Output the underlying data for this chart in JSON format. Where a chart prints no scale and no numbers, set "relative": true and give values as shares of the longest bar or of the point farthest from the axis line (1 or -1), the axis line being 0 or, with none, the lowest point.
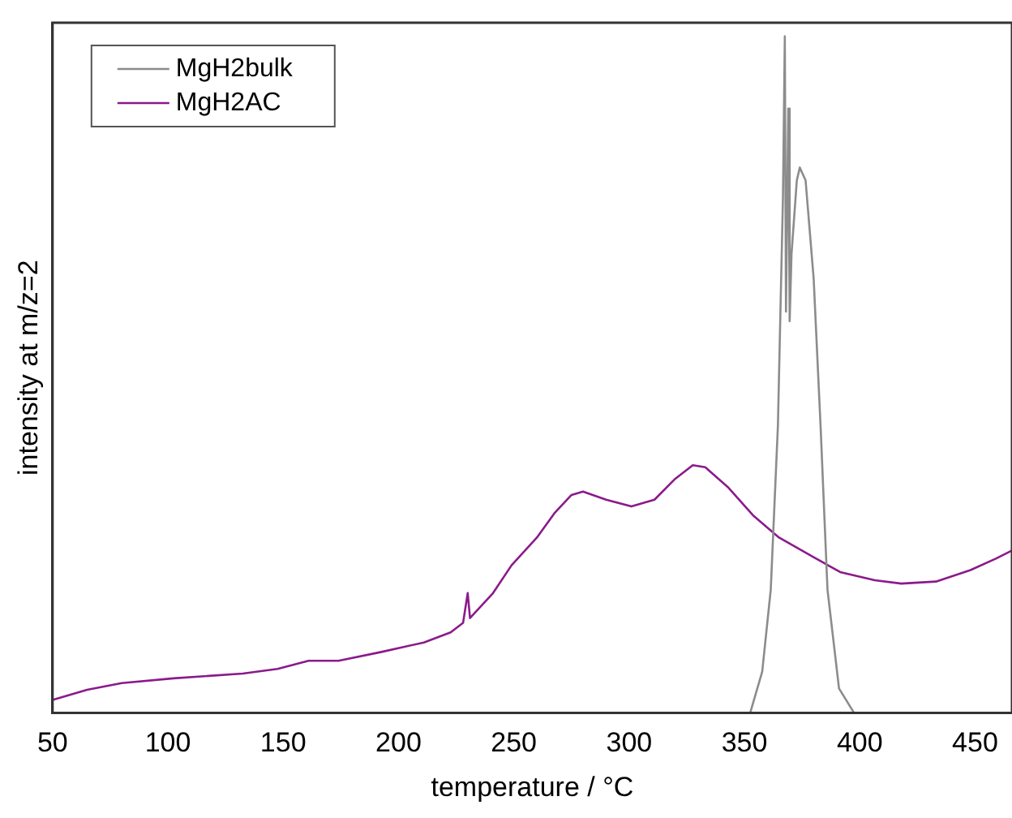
{
  "chart_data": {
    "type": "line",
    "xlabel": "temperature / °C",
    "ylabel": "intensity at m/z=2",
    "relative": true,
    "xlim": [
      50,
      466
    ],
    "xticks": [
      50,
      100,
      150,
      200,
      250,
      300,
      350,
      400,
      450
    ],
    "grid": false,
    "legend": "top left",
    "marker": "none",
    "line_style": "solid",
    "series": [
      {
        "name": "MgH2bulk",
        "color": "#8c8c8c",
        "x": [
          352.5,
          357.7,
          361.4,
          364.5,
          366.7,
          367.5,
          368,
          369,
          369.6,
          370.4,
          372.7,
          374,
          376.5,
          380,
          383,
          386,
          391,
          397.5
        ],
        "values": [
          0,
          0.061,
          0.182,
          0.424,
          0.763,
          1,
          0.593,
          0.893,
          0.579,
          0.678,
          0.787,
          0.806,
          0.787,
          0.642,
          0.424,
          0.182,
          0.036,
          0
        ]
      },
      {
        "name": "MgH2AC",
        "color": "#8b1a8b",
        "x": [
          50,
          65,
          80,
          102.5,
          132.5,
          147.6,
          161,
          174,
          192.6,
          211,
          222.6,
          228,
          230,
          231,
          241,
          249,
          260,
          267.6,
          275,
          280,
          290,
          301,
          311,
          320,
          327.6,
          333,
          342.7,
          354,
          365,
          380,
          391.5,
          406.5,
          418,
          433,
          448,
          459,
          466
        ],
        "values": [
          0.019,
          0.034,
          0.044,
          0.051,
          0.058,
          0.065,
          0.077,
          0.077,
          0.09,
          0.104,
          0.119,
          0.133,
          0.177,
          0.14,
          0.177,
          0.218,
          0.259,
          0.295,
          0.322,
          0.327,
          0.315,
          0.305,
          0.315,
          0.346,
          0.366,
          0.363,
          0.334,
          0.291,
          0.259,
          0.23,
          0.208,
          0.196,
          0.191,
          0.194,
          0.211,
          0.228,
          0.24
        ]
      }
    ]
  }
}
